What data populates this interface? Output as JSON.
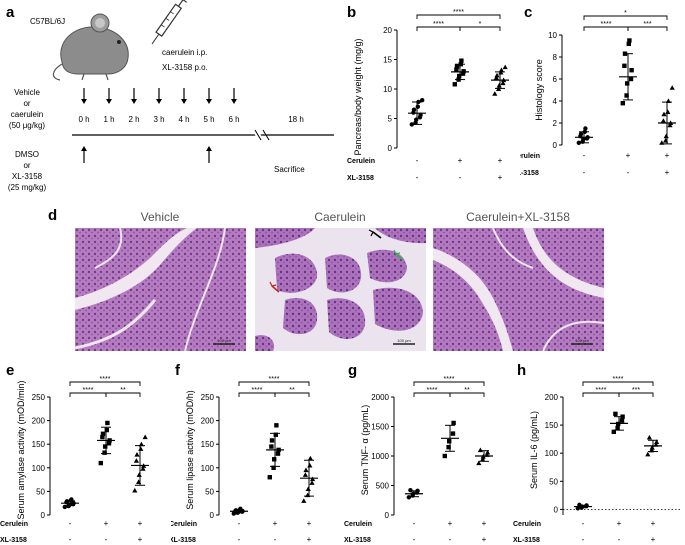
{
  "panel_a": {
    "letter": "a",
    "strain": "C57BL/6J",
    "dosing_line1": "caerulein i.p.",
    "dosing_line2": "XL-3158 p.o.",
    "veh_lines": [
      "Vehicle",
      "or",
      "caerulein",
      "(50 μg/kg)"
    ],
    "dmso_lines": [
      "DMSO",
      "or",
      "XL-3158",
      "(25 mg/kg)"
    ],
    "timepoints": [
      "0 h",
      "1 h",
      "2 h",
      "3 h",
      "4 h",
      "5 h",
      "6 h"
    ],
    "end_time": "18 h",
    "sacrifice": "Sacrifice"
  },
  "factor_labels": {
    "cerulein": "Cerulein",
    "xl": "XL-3158",
    "minus": "-",
    "plus": "+"
  },
  "sig": {
    "s1": "*",
    "s2": "**",
    "s3": "***",
    "s4": "****"
  },
  "panel_d": {
    "letter": "d",
    "titles": [
      "Vehicle",
      "Caerulein",
      "Caerulein+XL-3158"
    ],
    "scalebar": "100 μm"
  },
  "chart_data": [
    {
      "id": "b",
      "type": "scatter",
      "letter": "b",
      "ylabel": "Pancreas/body weight (mg/g)",
      "ylim": [
        0,
        20
      ],
      "yticks": [
        "0",
        "5",
        "10",
        "15",
        "20"
      ],
      "groups": [
        {
          "cerulein": "-",
          "xl": "-",
          "mean": 5.9,
          "sd": 1.9,
          "points": [
            4.0,
            4.3,
            4.8,
            5.2,
            5.6,
            6.0,
            6.5,
            7.0,
            7.8,
            8.1
          ]
        },
        {
          "cerulein": "+",
          "xl": "-",
          "mean": 12.9,
          "sd": 1.3,
          "points": [
            10.8,
            11.6,
            12.2,
            12.6,
            13.0,
            13.3,
            13.8,
            14.2,
            14.8
          ]
        },
        {
          "cerulein": "+",
          "xl": "+",
          "mean": 11.5,
          "sd": 1.4,
          "points": [
            9.2,
            10.0,
            10.6,
            11.0,
            11.5,
            11.9,
            12.3,
            12.8,
            13.2,
            13.7
          ]
        }
      ],
      "significance": [
        [
          "1",
          "2",
          "****"
        ],
        [
          "1",
          "3",
          "****"
        ],
        [
          "2",
          "3",
          "*"
        ]
      ]
    },
    {
      "id": "c",
      "type": "scatter",
      "letter": "c",
      "ylabel": "Histology score",
      "ylim": [
        0,
        10
      ],
      "yticks": [
        "0",
        "2",
        "4",
        "6",
        "8",
        "10"
      ],
      "groups": [
        {
          "cerulein": "-",
          "xl": "-",
          "mean": 0.7,
          "sd": 0.5,
          "points": [
            0.2,
            0.3,
            0.5,
            0.6,
            0.7,
            0.8,
            1.0,
            1.2,
            1.5
          ]
        },
        {
          "cerulein": "+",
          "xl": "-",
          "mean": 6.2,
          "sd": 2.1,
          "points": [
            3.8,
            4.5,
            5.6,
            6.0,
            6.8,
            7.2,
            8.3,
            9.2,
            9.5
          ]
        },
        {
          "cerulein": "+",
          "xl": "+",
          "mean": 2.0,
          "sd": 1.9,
          "points": [
            0.2,
            0.4,
            0.8,
            1.8,
            2.0,
            2.2,
            2.8,
            3.0,
            4.0,
            5.2
          ]
        }
      ],
      "significance": [
        [
          "1",
          "2",
          "****"
        ],
        [
          "1",
          "3",
          "*"
        ],
        [
          "2",
          "3",
          "***"
        ]
      ]
    },
    {
      "id": "e",
      "type": "scatter",
      "letter": "e",
      "ylabel": "Serum amylase activity (mOD/min)",
      "ylim": [
        0,
        250
      ],
      "yticks": [
        "0",
        "50",
        "100",
        "150",
        "200",
        "250"
      ],
      "groups": [
        {
          "cerulein": "-",
          "xl": "-",
          "mean": 25,
          "sd": 5,
          "points": [
            17,
            19,
            21,
            23,
            25,
            27,
            29,
            31,
            33
          ]
        },
        {
          "cerulein": "+",
          "xl": "-",
          "mean": 158,
          "sd": 28,
          "points": [
            110,
            132,
            145,
            152,
            158,
            165,
            172,
            180,
            195
          ]
        },
        {
          "cerulein": "+",
          "xl": "+",
          "mean": 105,
          "sd": 42,
          "points": [
            52,
            70,
            85,
            98,
            104,
            115,
            128,
            140,
            150,
            165
          ]
        }
      ],
      "significance": [
        [
          "1",
          "2",
          "****"
        ],
        [
          "1",
          "3",
          "****"
        ],
        [
          "2",
          "3",
          "**"
        ]
      ]
    },
    {
      "id": "f",
      "type": "scatter",
      "letter": "f",
      "ylabel": "Serum lipase activity (mOD/h)",
      "ylim": [
        0,
        250
      ],
      "yticks": [
        "0",
        "50",
        "100",
        "150",
        "200",
        "250"
      ],
      "groups": [
        {
          "cerulein": "-",
          "xl": "-",
          "mean": 8,
          "sd": 3,
          "points": [
            3,
            5,
            6,
            7,
            8,
            9,
            10,
            11,
            13
          ]
        },
        {
          "cerulein": "+",
          "xl": "-",
          "mean": 138,
          "sd": 35,
          "points": [
            80,
            100,
            118,
            130,
            138,
            145,
            158,
            170,
            190
          ]
        },
        {
          "cerulein": "+",
          "xl": "+",
          "mean": 78,
          "sd": 38,
          "points": [
            30,
            42,
            55,
            68,
            76,
            85,
            95,
            105,
            120
          ]
        }
      ],
      "significance": [
        [
          "1",
          "2",
          "****"
        ],
        [
          "1",
          "3",
          "****"
        ],
        [
          "2",
          "3",
          "**"
        ]
      ]
    },
    {
      "id": "g",
      "type": "scatter",
      "letter": "g",
      "ylabel": "Serum TNF- α (pg/mL)",
      "ylim": [
        0,
        2000
      ],
      "yticks": [
        "0",
        "500",
        "1000",
        "1500",
        "2000"
      ],
      "groups": [
        {
          "cerulein": "-",
          "xl": "-",
          "mean": 360,
          "sd": 50,
          "points": [
            300,
            330,
            360,
            380,
            410,
            420
          ]
        },
        {
          "cerulein": "+",
          "xl": "-",
          "mean": 1300,
          "sd": 220,
          "points": [
            1000,
            1150,
            1250,
            1380,
            1560
          ]
        },
        {
          "cerulein": "+",
          "xl": "+",
          "mean": 1000,
          "sd": 90,
          "points": [
            880,
            940,
            990,
            1020,
            1060,
            1100
          ]
        }
      ],
      "significance": [
        [
          "1",
          "2",
          "****"
        ],
        [
          "1",
          "3",
          "****"
        ],
        [
          "2",
          "3",
          "**"
        ]
      ]
    },
    {
      "id": "h",
      "type": "scatter",
      "letter": "h",
      "ylabel": "Serum IL-6 (pg/mL)",
      "ylim": [
        -10,
        200
      ],
      "yticks": [
        "0",
        "50",
        "100",
        "150",
        "200"
      ],
      "dotted_zero": true,
      "groups": [
        {
          "cerulein": "-",
          "xl": "-",
          "mean": 5,
          "sd": 2,
          "points": [
            2,
            3,
            5,
            6,
            7,
            8
          ]
        },
        {
          "cerulein": "+",
          "xl": "-",
          "mean": 153,
          "sd": 12,
          "points": [
            138,
            145,
            152,
            158,
            165,
            170
          ]
        },
        {
          "cerulein": "+",
          "xl": "+",
          "mean": 113,
          "sd": 10,
          "points": [
            98,
            105,
            110,
            115,
            120,
            128
          ]
        }
      ],
      "significance": [
        [
          "1",
          "2",
          "****"
        ],
        [
          "1",
          "3",
          "****"
        ],
        [
          "2",
          "3",
          "***"
        ]
      ]
    }
  ]
}
